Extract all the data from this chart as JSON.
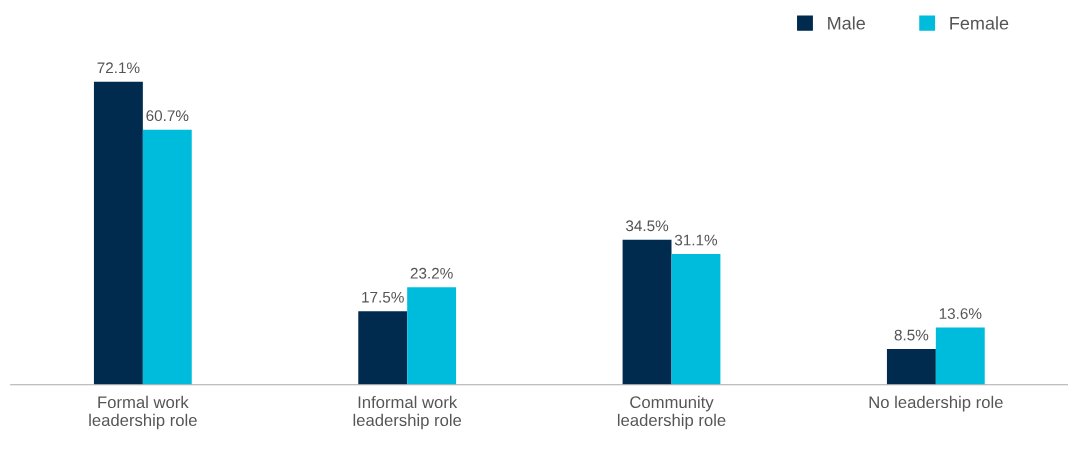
{
  "chart_data": {
    "type": "bar",
    "categories": [
      "Formal work\nleadership role",
      "Informal work\nleadership role",
      "Community\nleadership role",
      "No leadership role"
    ],
    "series": [
      {
        "name": "Male",
        "color": "#002a4e",
        "values": [
          72.1,
          17.5,
          34.5,
          8.5
        ],
        "value_labels": [
          "72.1%",
          "17.5%",
          "34.5%",
          "8.5%"
        ]
      },
      {
        "name": "Female",
        "color": "#00bcdc",
        "values": [
          60.7,
          23.2,
          31.1,
          13.6
        ],
        "value_labels": [
          "60.7%",
          "23.2%",
          "31.1%",
          "13.6%"
        ]
      }
    ],
    "tick_labels": "x",
    "grid": false,
    "legend": "top right"
  }
}
